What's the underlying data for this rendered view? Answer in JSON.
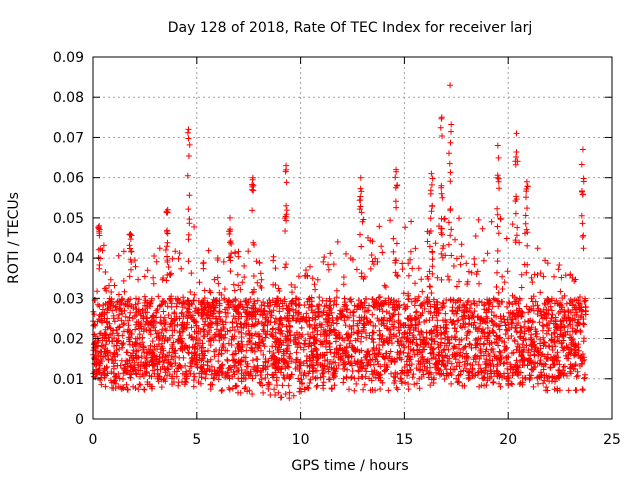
{
  "chart_data": {
    "type": "scatter",
    "title": "Day 128 of 2018, Rate Of TEC Index for receiver larj",
    "xlabel": "GPS time / hours",
    "ylabel": "ROTI / TECUs",
    "xlim": [
      0,
      25
    ],
    "ylim": [
      0,
      0.09
    ],
    "xticks": [
      0,
      5,
      10,
      15,
      20,
      25
    ],
    "xtick_labels": [
      "0",
      "5",
      "10",
      "15",
      "20",
      "25"
    ],
    "yticks": [
      0,
      0.01,
      0.02,
      0.03,
      0.04,
      0.05,
      0.06,
      0.07,
      0.08,
      0.09
    ],
    "ytick_labels": [
      "0",
      "0.01",
      "0.02",
      "0.03",
      "0.04",
      "0.05",
      "0.06",
      "0.07",
      "0.08",
      "0.09"
    ],
    "grid": true,
    "marker": "+",
    "marker_color": "#ff0000",
    "series": [
      {
        "name": "ROTI",
        "x_range": [
          0,
          23.75
        ],
        "typical_band": [
          0.01,
          0.03
        ],
        "envelope": [
          {
            "x": 0,
            "low": 0.01,
            "high": 0.035
          },
          {
            "x": 0.5,
            "low": 0.008,
            "high": 0.045
          },
          {
            "x": 2,
            "low": 0.007,
            "high": 0.04
          },
          {
            "x": 4,
            "low": 0.008,
            "high": 0.045
          },
          {
            "x": 4.7,
            "low": 0.008,
            "high": 0.05
          },
          {
            "x": 6,
            "low": 0.007,
            "high": 0.04
          },
          {
            "x": 8,
            "low": 0.006,
            "high": 0.045
          },
          {
            "x": 9.5,
            "low": 0.005,
            "high": 0.035
          },
          {
            "x": 10.5,
            "low": 0.008,
            "high": 0.04
          },
          {
            "x": 12,
            "low": 0.007,
            "high": 0.045
          },
          {
            "x": 13,
            "low": 0.007,
            "high": 0.05
          },
          {
            "x": 15,
            "low": 0.007,
            "high": 0.05
          },
          {
            "x": 17,
            "low": 0.008,
            "high": 0.05
          },
          {
            "x": 19.5,
            "low": 0.008,
            "high": 0.05
          },
          {
            "x": 20.5,
            "low": 0.008,
            "high": 0.05
          },
          {
            "x": 22,
            "low": 0.007,
            "high": 0.04
          },
          {
            "x": 23.75,
            "low": 0.007,
            "high": 0.035
          }
        ],
        "spikes": [
          {
            "x": 0.3,
            "peak": 0.048
          },
          {
            "x": 1.8,
            "peak": 0.046
          },
          {
            "x": 3.6,
            "peak": 0.052
          },
          {
            "x": 4.6,
            "peak": 0.072
          },
          {
            "x": 6.6,
            "peak": 0.05
          },
          {
            "x": 7.7,
            "peak": 0.06
          },
          {
            "x": 9.3,
            "peak": 0.063
          },
          {
            "x": 12.9,
            "peak": 0.06
          },
          {
            "x": 14.6,
            "peak": 0.062
          },
          {
            "x": 16.3,
            "peak": 0.061
          },
          {
            "x": 16.8,
            "peak": 0.075
          },
          {
            "x": 17.2,
            "peak": 0.083
          },
          {
            "x": 19.5,
            "peak": 0.068
          },
          {
            "x": 20.4,
            "peak": 0.071
          },
          {
            "x": 20.9,
            "peak": 0.059
          },
          {
            "x": 23.6,
            "peak": 0.067
          }
        ]
      }
    ]
  }
}
